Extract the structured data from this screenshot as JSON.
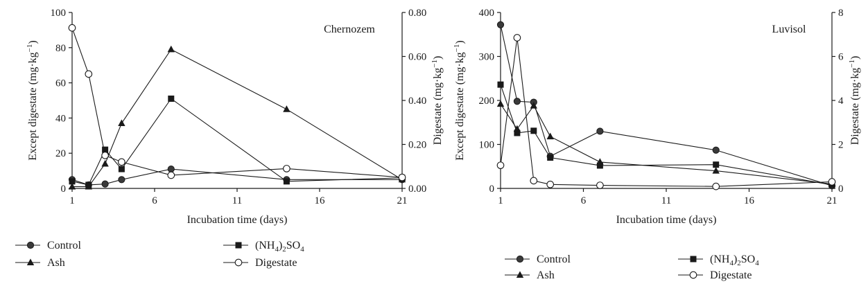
{
  "chart_data": [
    {
      "type": "line",
      "annotation": "Chernozem",
      "xlabel": "Incubation time (days)",
      "ylabel": "Except digestate (mg·kg",
      "ylabel_exp": "−1",
      "ylabel_close": ")",
      "y2label": "Digestate (mg·kg",
      "y2label_exp": "−1",
      "y2label_close": ")",
      "xlim": [
        1,
        21
      ],
      "ylim": [
        0,
        100
      ],
      "y2lim": [
        0,
        0.8
      ],
      "x_ticks": [
        1,
        6,
        11,
        16,
        21
      ],
      "y_ticks": [
        0,
        20,
        40,
        60,
        80,
        100
      ],
      "y_tick_labels": [
        "0",
        "20",
        "40",
        "60",
        "80",
        "100"
      ],
      "y2_ticks": [
        0,
        0.2,
        0.4,
        0.6,
        0.8
      ],
      "y2_tick_labels": [
        "0.00",
        "0.20",
        "0.40",
        "0.60",
        "0.80"
      ],
      "series": [
        {
          "name": "Control",
          "marker": "circle-filled",
          "axis": "left",
          "x": [
            1,
            2,
            3,
            4,
            7,
            14,
            21
          ],
          "y": [
            5,
            2,
            2.5,
            5,
            11,
            5,
            5
          ]
        },
        {
          "name": "Ash",
          "marker": "triangle-filled",
          "axis": "left",
          "x": [
            1,
            2,
            3,
            4,
            7,
            14,
            21
          ],
          "y": [
            1,
            1,
            14,
            37,
            79,
            45,
            5
          ]
        },
        {
          "name": "(NH4)2SO4",
          "marker": "square-filled",
          "axis": "left",
          "x": [
            1,
            2,
            3,
            4,
            7,
            14,
            21
          ],
          "y": [
            4,
            2,
            22,
            11,
            51,
            4,
            6
          ]
        },
        {
          "name": "Digestate",
          "marker": "circle-open",
          "axis": "right",
          "x": [
            1,
            2,
            3,
            4,
            7,
            14,
            21
          ],
          "y": [
            0.73,
            0.52,
            0.15,
            0.12,
            0.06,
            0.09,
            0.05
          ]
        }
      ]
    },
    {
      "type": "line",
      "annotation": "Luvisol",
      "xlabel": "Incubation time (days)",
      "ylabel": "Except digestate (mg·kg",
      "ylabel_exp": "−1",
      "ylabel_close": ")",
      "y2label": "Digestate (mg·kg",
      "y2label_exp": "−1",
      "y2label_close": ")",
      "xlim": [
        1,
        21
      ],
      "ylim": [
        0,
        400
      ],
      "y2lim": [
        0,
        8
      ],
      "x_ticks": [
        1,
        6,
        11,
        16,
        21
      ],
      "y_ticks": [
        0,
        100,
        200,
        300,
        400
      ],
      "y_tick_labels": [
        "0",
        "100",
        "200",
        "300",
        "400"
      ],
      "y2_ticks": [
        0,
        2,
        4,
        6,
        8
      ],
      "y2_tick_labels": [
        "0",
        "2",
        "4",
        "6",
        "8"
      ],
      "series": [
        {
          "name": "Control",
          "marker": "circle-filled",
          "axis": "left",
          "x": [
            1,
            2,
            3,
            4,
            7,
            14,
            21
          ],
          "y": [
            372,
            198,
            196,
            73,
            130,
            87,
            6
          ]
        },
        {
          "name": "Ash",
          "marker": "triangle-filled",
          "axis": "left",
          "x": [
            1,
            2,
            3,
            4,
            7,
            14,
            21
          ],
          "y": [
            192,
            135,
            188,
            118,
            60,
            40,
            10
          ]
        },
        {
          "name": "(NH4)2SO4",
          "marker": "square-filled",
          "axis": "left",
          "x": [
            1,
            2,
            3,
            4,
            7,
            14,
            21
          ],
          "y": [
            236,
            126,
            131,
            70,
            52,
            54,
            8
          ]
        },
        {
          "name": "Digestate",
          "marker": "circle-open",
          "axis": "right",
          "x": [
            1,
            2,
            3,
            4,
            7,
            14,
            21
          ],
          "y": [
            1.05,
            6.85,
            0.35,
            0.18,
            0.14,
            0.09,
            0.3
          ]
        }
      ]
    }
  ],
  "legend": [
    {
      "label": "Control",
      "marker": "circle-filled"
    },
    {
      "label": "(NH",
      "sub1": "4",
      "mid": ")",
      "sub2": "2",
      "tail": "SO",
      "sub3": "4",
      "marker": "square-filled"
    },
    {
      "label": "Ash",
      "marker": "triangle-filled"
    },
    {
      "label": "Digestate",
      "marker": "circle-open"
    }
  ]
}
